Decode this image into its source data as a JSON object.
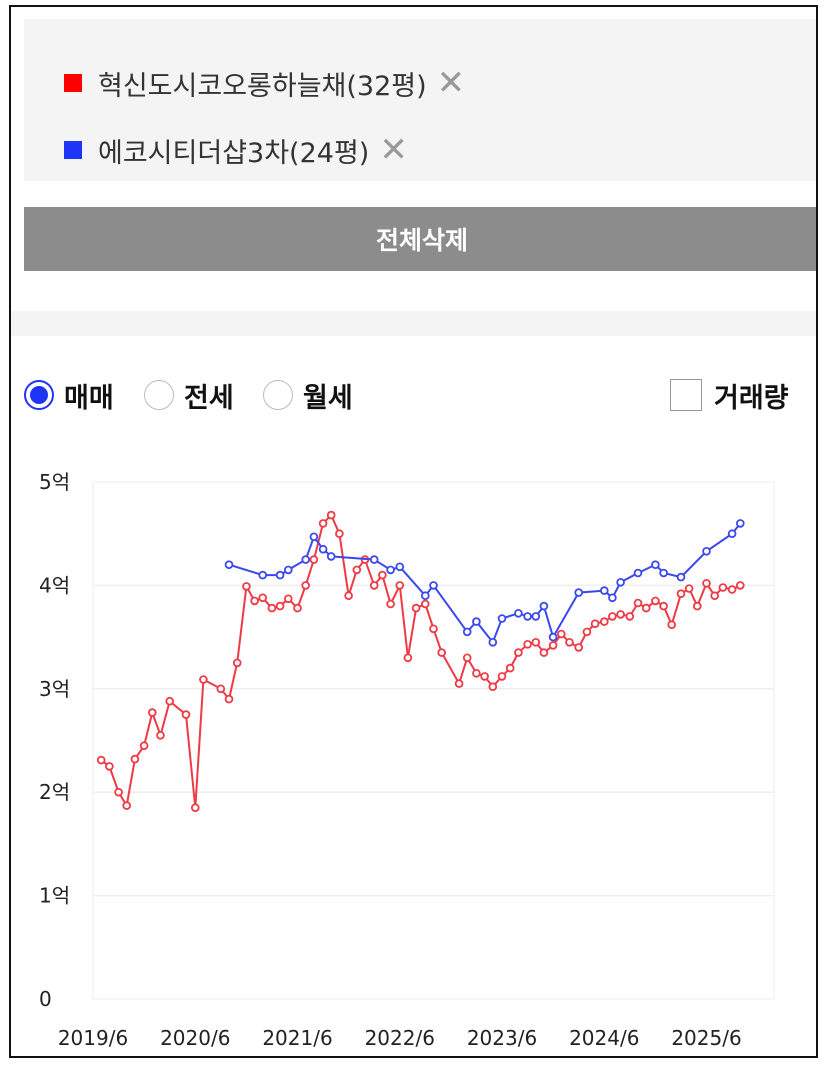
{
  "legend": {
    "items": [
      {
        "label": "혁신도시코오롱하늘채(32평)",
        "color": "#ff0000",
        "close": "✕"
      },
      {
        "label": "에코시티더샵3차(24평)",
        "color": "#1f35f5",
        "close": "✕"
      }
    ]
  },
  "delete_all_label": "전체삭제",
  "options": {
    "radios": [
      {
        "label": "매매",
        "checked": true
      },
      {
        "label": "전세",
        "checked": false
      },
      {
        "label": "월세",
        "checked": false
      }
    ],
    "volume_label": "거래량"
  },
  "chart_data": {
    "type": "line",
    "y_tick_labels": [
      "0",
      "1억",
      "2억",
      "3억",
      "4억",
      "5억"
    ],
    "y_tick_values": [
      0,
      1,
      2,
      3,
      4,
      5
    ],
    "ylim": [
      0,
      5
    ],
    "x_tick_labels": [
      "2019/6",
      "2020/6",
      "2021/6",
      "2022/6",
      "2023/6",
      "2024/6",
      "2025/6"
    ],
    "x_tick_values": [
      2019.42,
      2020.42,
      2021.42,
      2022.42,
      2023.42,
      2024.42,
      2025.42
    ],
    "xlim": [
      2019.42,
      2026.08
    ],
    "grid": true,
    "series": [
      {
        "name": "혁신도시코오롱하늘채(32평)",
        "color": "#ef3a45",
        "points": [
          [
            2019.5,
            2.31
          ],
          [
            2019.58,
            2.25
          ],
          [
            2019.67,
            2.0
          ],
          [
            2019.75,
            1.87
          ],
          [
            2019.83,
            2.32
          ],
          [
            2019.92,
            2.45
          ],
          [
            2020.0,
            2.77
          ],
          [
            2020.08,
            2.55
          ],
          [
            2020.17,
            2.88
          ],
          [
            2020.33,
            2.75
          ],
          [
            2020.42,
            1.85
          ],
          [
            2020.5,
            3.09
          ],
          [
            2020.67,
            3.0
          ],
          [
            2020.75,
            2.9
          ],
          [
            2020.83,
            3.25
          ],
          [
            2020.92,
            3.99
          ],
          [
            2021.0,
            3.85
          ],
          [
            2021.08,
            3.88
          ],
          [
            2021.17,
            3.78
          ],
          [
            2021.25,
            3.8
          ],
          [
            2021.33,
            3.87
          ],
          [
            2021.42,
            3.78
          ],
          [
            2021.5,
            4.0
          ],
          [
            2021.58,
            4.25
          ],
          [
            2021.67,
            4.6
          ],
          [
            2021.75,
            4.68
          ],
          [
            2021.83,
            4.5
          ],
          [
            2021.92,
            3.9
          ],
          [
            2022.0,
            4.15
          ],
          [
            2022.08,
            4.25
          ],
          [
            2022.17,
            4.0
          ],
          [
            2022.25,
            4.1
          ],
          [
            2022.33,
            3.82
          ],
          [
            2022.42,
            4.0
          ],
          [
            2022.5,
            3.3
          ],
          [
            2022.58,
            3.78
          ],
          [
            2022.67,
            3.82
          ],
          [
            2022.75,
            3.58
          ],
          [
            2022.83,
            3.35
          ],
          [
            2023.0,
            3.05
          ],
          [
            2023.08,
            3.3
          ],
          [
            2023.17,
            3.15
          ],
          [
            2023.25,
            3.12
          ],
          [
            2023.33,
            3.02
          ],
          [
            2023.42,
            3.12
          ],
          [
            2023.5,
            3.2
          ],
          [
            2023.58,
            3.35
          ],
          [
            2023.67,
            3.43
          ],
          [
            2023.75,
            3.45
          ],
          [
            2023.83,
            3.35
          ],
          [
            2023.92,
            3.42
          ],
          [
            2024.0,
            3.53
          ],
          [
            2024.08,
            3.45
          ],
          [
            2024.17,
            3.4
          ],
          [
            2024.25,
            3.55
          ],
          [
            2024.33,
            3.63
          ],
          [
            2024.42,
            3.65
          ],
          [
            2024.5,
            3.7
          ],
          [
            2024.58,
            3.72
          ],
          [
            2024.67,
            3.7
          ],
          [
            2024.75,
            3.83
          ],
          [
            2024.83,
            3.78
          ],
          [
            2024.92,
            3.85
          ],
          [
            2025.0,
            3.8
          ],
          [
            2025.08,
            3.62
          ],
          [
            2025.17,
            3.92
          ],
          [
            2025.25,
            3.97
          ],
          [
            2025.33,
            3.8
          ],
          [
            2025.42,
            4.02
          ],
          [
            2025.5,
            3.9
          ],
          [
            2025.58,
            3.98
          ],
          [
            2025.67,
            3.96
          ],
          [
            2025.75,
            4.0
          ]
        ]
      },
      {
        "name": "에코시티더샵3차(24평)",
        "color": "#3a48ee",
        "points": [
          [
            2020.75,
            4.2
          ],
          [
            2021.08,
            4.1
          ],
          [
            2021.25,
            4.1
          ],
          [
            2021.33,
            4.15
          ],
          [
            2021.5,
            4.25
          ],
          [
            2021.58,
            4.47
          ],
          [
            2021.67,
            4.35
          ],
          [
            2021.75,
            4.28
          ],
          [
            2022.17,
            4.25
          ],
          [
            2022.33,
            4.15
          ],
          [
            2022.42,
            4.18
          ],
          [
            2022.67,
            3.9
          ],
          [
            2022.75,
            4.0
          ],
          [
            2023.08,
            3.55
          ],
          [
            2023.17,
            3.65
          ],
          [
            2023.33,
            3.45
          ],
          [
            2023.42,
            3.68
          ],
          [
            2023.58,
            3.73
          ],
          [
            2023.67,
            3.7
          ],
          [
            2023.75,
            3.7
          ],
          [
            2023.83,
            3.8
          ],
          [
            2023.92,
            3.5
          ],
          [
            2024.17,
            3.93
          ],
          [
            2024.42,
            3.95
          ],
          [
            2024.5,
            3.88
          ],
          [
            2024.58,
            4.03
          ],
          [
            2024.75,
            4.12
          ],
          [
            2024.92,
            4.2
          ],
          [
            2025.0,
            4.12
          ],
          [
            2025.17,
            4.08
          ],
          [
            2025.42,
            4.33
          ],
          [
            2025.67,
            4.5
          ],
          [
            2025.75,
            4.6
          ]
        ]
      }
    ]
  }
}
